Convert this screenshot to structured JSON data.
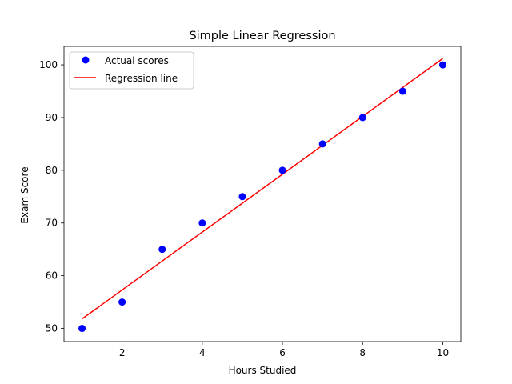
{
  "chart_data": {
    "type": "scatter",
    "title": "Simple Linear Regression",
    "xlabel": "Hours Studied",
    "ylabel": "Exam Score",
    "xlim": [
      0.55,
      10.45
    ],
    "ylim": [
      47.5,
      103.5
    ],
    "xticks": [
      2,
      4,
      6,
      8,
      10
    ],
    "yticks": [
      50,
      60,
      70,
      80,
      90,
      100
    ],
    "grid": false,
    "legend_position": "top-left",
    "series": [
      {
        "name": "Actual scores",
        "type": "scatter",
        "color": "#0000ff",
        "x": [
          1,
          2,
          3,
          4,
          5,
          6,
          7,
          8,
          9,
          10
        ],
        "y": [
          50,
          55,
          65,
          70,
          75,
          80,
          85,
          90,
          95,
          100
        ]
      },
      {
        "name": "Regression line",
        "type": "line",
        "color": "#ff0000",
        "x": [
          1,
          10
        ],
        "y": [
          51.8,
          101.2
        ]
      }
    ]
  }
}
